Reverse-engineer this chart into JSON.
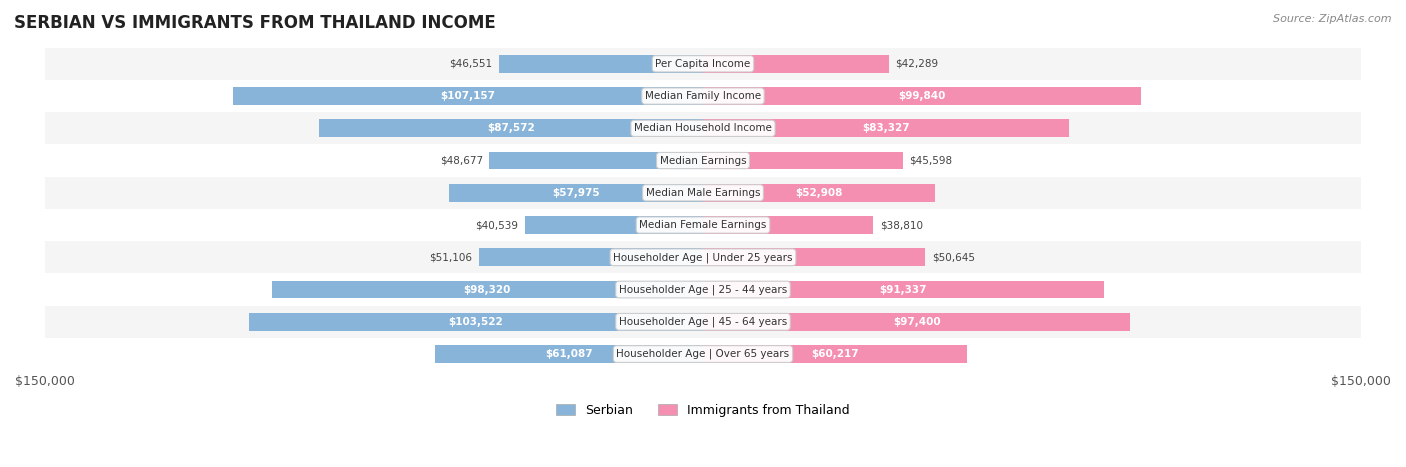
{
  "title": "SERBIAN VS IMMIGRANTS FROM THAILAND INCOME",
  "source": "Source: ZipAtlas.com",
  "categories": [
    "Per Capita Income",
    "Median Family Income",
    "Median Household Income",
    "Median Earnings",
    "Median Male Earnings",
    "Median Female Earnings",
    "Householder Age | Under 25 years",
    "Householder Age | 25 - 44 years",
    "Householder Age | 45 - 64 years",
    "Householder Age | Over 65 years"
  ],
  "serbian_values": [
    46551,
    107157,
    87572,
    48677,
    57975,
    40539,
    51106,
    98320,
    103522,
    61087
  ],
  "thailand_values": [
    42289,
    99840,
    83327,
    45598,
    52908,
    38810,
    50645,
    91337,
    97400,
    60217
  ],
  "serbian_labels": [
    "$46,551",
    "$107,157",
    "$87,572",
    "$48,677",
    "$57,975",
    "$40,539",
    "$51,106",
    "$98,320",
    "$103,522",
    "$61,087"
  ],
  "thailand_labels": [
    "$42,289",
    "$99,840",
    "$83,327",
    "$45,598",
    "$52,908",
    "$38,810",
    "$50,645",
    "$91,337",
    "$97,400",
    "$60,217"
  ],
  "serbian_color": "#89b4d9",
  "thailand_color": "#f48fb1",
  "serbian_color_dark": "#5b9bd5",
  "thailand_color_dark": "#f06292",
  "max_value": 150000,
  "bar_height": 0.55,
  "background_color": "#ffffff",
  "row_bg_even": "#f5f5f5",
  "row_bg_odd": "#ffffff",
  "legend_serbian": "Serbian",
  "legend_thailand": "Immigrants from Thailand",
  "xlabel_left": "$150,000",
  "xlabel_right": "$150,000"
}
